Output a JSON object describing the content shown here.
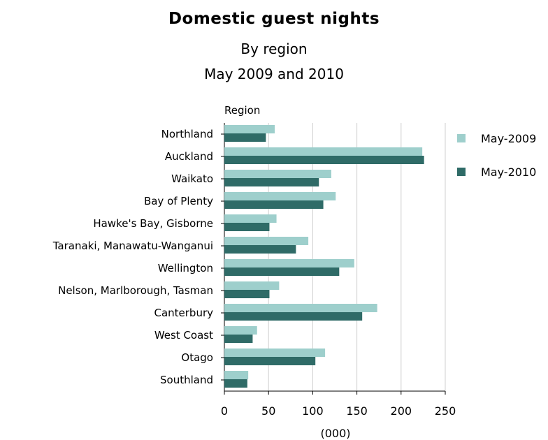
{
  "chart_data": {
    "type": "bar",
    "orientation": "horizontal",
    "title": "Domestic guest nights",
    "subtitle": [
      "By region",
      "May 2009 and 2010"
    ],
    "ylabel": "Region",
    "xlabel": "(000)",
    "xlim": [
      0,
      250
    ],
    "x_ticks": [
      "0",
      "50",
      "100",
      "150",
      "200",
      "250"
    ],
    "grid": "vertical",
    "legend_position": "right",
    "categories": [
      "Northland",
      "Auckland",
      "Waikato",
      "Bay of Plenty",
      "Hawke's Bay, Gisborne",
      "Taranaki, Manawatu-Wanganui",
      "Wellington",
      "Nelson, Marlborough, Tasman",
      "Canterbury",
      "West Coast",
      "Otago",
      "Southland"
    ],
    "series": [
      {
        "name": "May-2009",
        "color": "#9ecfcc",
        "values": [
          57,
          224,
          121,
          126,
          59,
          95,
          147,
          62,
          173,
          37,
          114,
          27
        ]
      },
      {
        "name": "May-2010",
        "color": "#2f6b67",
        "values": [
          47,
          226,
          107,
          112,
          51,
          81,
          130,
          51,
          156,
          32,
          103,
          26
        ]
      }
    ]
  }
}
